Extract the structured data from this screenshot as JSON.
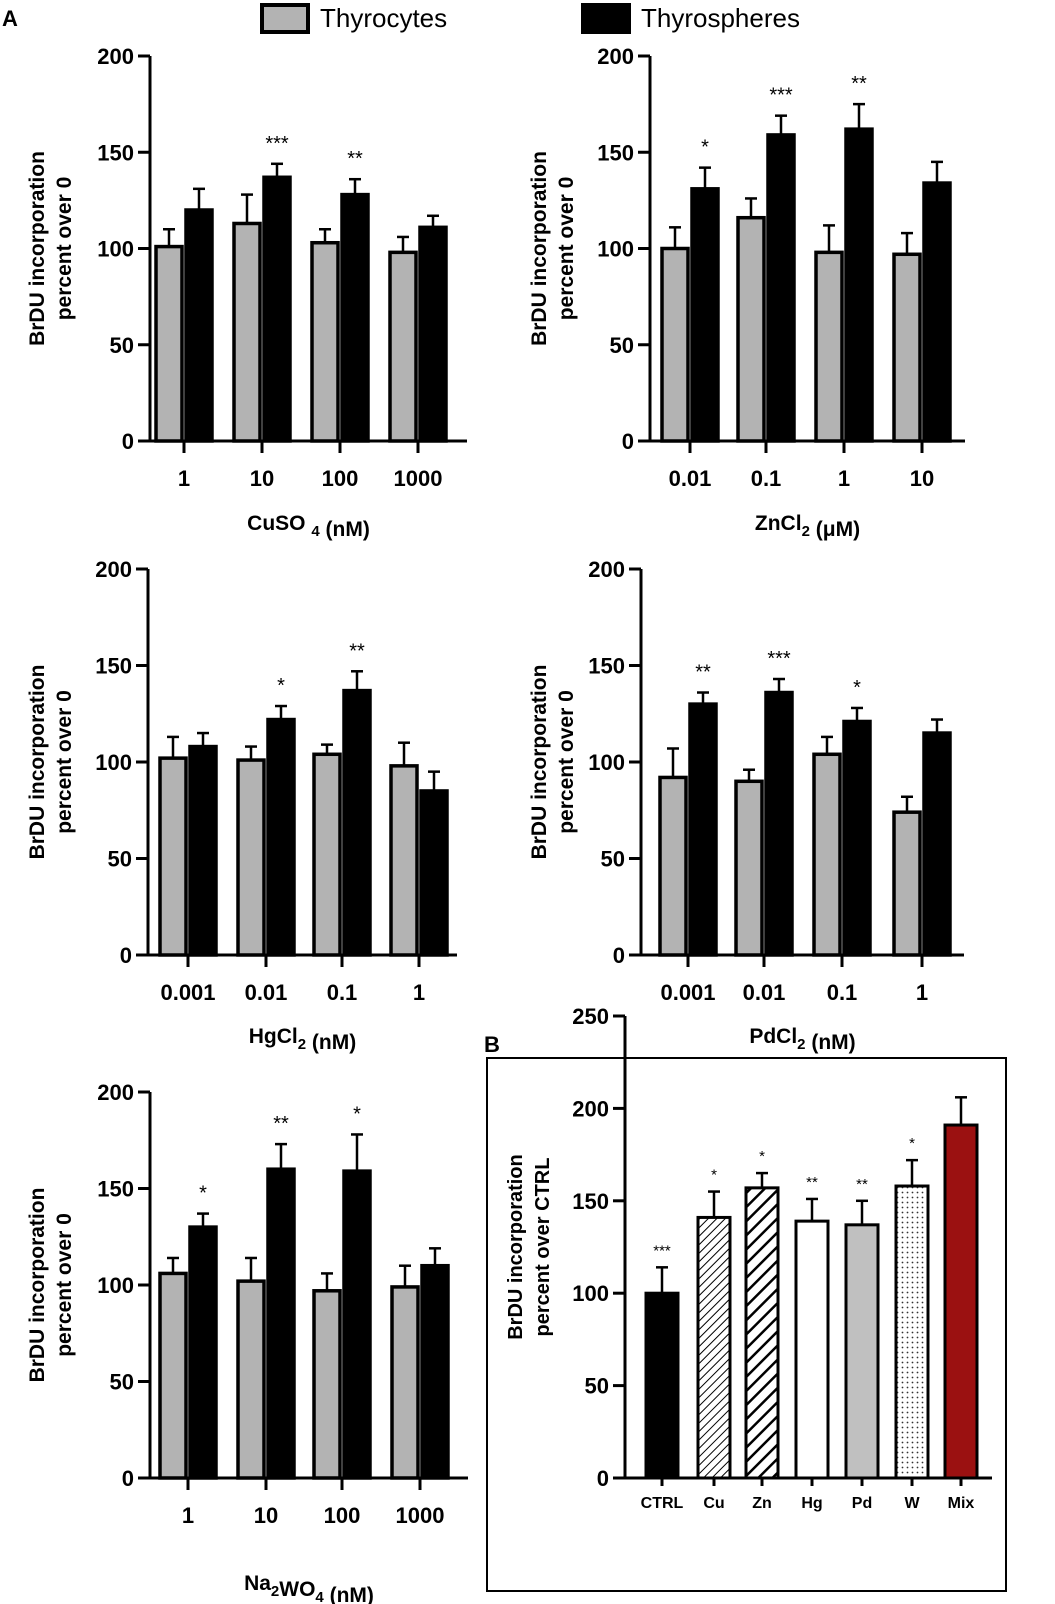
{
  "panel_labels": {
    "a": "A",
    "b": "B"
  },
  "legend": {
    "thyrocytes": "Thyrocytes",
    "thyrospheres": "Thyrospheres"
  },
  "colors": {
    "thyrocytes": "#b3b3b3",
    "thyrospheres": "#000000",
    "mix": "#9b1111",
    "pd": "#c0c0c0",
    "hg": "#ffffff",
    "ctrl": "#000000"
  },
  "chart_data": [
    {
      "id": "cu",
      "type": "bar",
      "title": "",
      "xlabel": "CuSO 4 (nM)",
      "xlabel_parts": [
        {
          "t": "CuSO ",
          "sub": false
        },
        {
          "t": "4",
          "sub": true
        },
        {
          "t": " (nM)",
          "sub": false
        }
      ],
      "ylabel": [
        "BrDU incorporation",
        "percent over 0"
      ],
      "ylim": [
        0,
        200
      ],
      "yticks": [
        0,
        50,
        100,
        150,
        200
      ],
      "categories": [
        "1",
        "10",
        "100",
        "1000"
      ],
      "series": [
        {
          "name": "Thyrocytes",
          "values": [
            101,
            113,
            103,
            98
          ],
          "errors": [
            9,
            15,
            7,
            8
          ]
        },
        {
          "name": "Thyrospheres",
          "values": [
            120,
            137,
            128,
            111
          ],
          "errors": [
            11,
            7,
            8,
            6
          ]
        }
      ],
      "annotations": [
        "",
        "***",
        "**",
        ""
      ]
    },
    {
      "id": "zn",
      "type": "bar",
      "title": "",
      "xlabel": "ZnCl2 (μM)",
      "xlabel_parts": [
        {
          "t": "ZnCl",
          "sub": false
        },
        {
          "t": "2",
          "sub": true
        },
        {
          "t": " (μM)",
          "sub": false
        }
      ],
      "ylabel": [
        "BrDU incorporation",
        "percent over 0"
      ],
      "ylim": [
        0,
        200
      ],
      "yticks": [
        0,
        50,
        100,
        150,
        200
      ],
      "categories": [
        "0.01",
        "0.1",
        "1",
        "10"
      ],
      "series": [
        {
          "name": "Thyrocytes",
          "values": [
            100,
            116,
            98,
            97
          ],
          "errors": [
            11,
            10,
            14,
            11
          ]
        },
        {
          "name": "Thyrospheres",
          "values": [
            131,
            159,
            162,
            134
          ],
          "errors": [
            11,
            10,
            13,
            11
          ]
        }
      ],
      "annotations": [
        "*",
        "***",
        "**",
        ""
      ]
    },
    {
      "id": "hg",
      "type": "bar",
      "title": "",
      "xlabel": "HgCl2 (nM)",
      "xlabel_parts": [
        {
          "t": "HgCl",
          "sub": false
        },
        {
          "t": "2",
          "sub": true
        },
        {
          "t": " (nM)",
          "sub": false
        }
      ],
      "ylabel": [
        "BrDU incorporation",
        "percent over 0"
      ],
      "ylim": [
        0,
        200
      ],
      "yticks": [
        0,
        50,
        100,
        150,
        200
      ],
      "categories": [
        "0.001",
        "0.01",
        "0.1",
        "1"
      ],
      "series": [
        {
          "name": "Thyrocytes",
          "values": [
            102,
            101,
            104,
            98
          ],
          "errors": [
            11,
            7,
            5,
            12
          ]
        },
        {
          "name": "Thyrospheres",
          "values": [
            108,
            122,
            137,
            85
          ],
          "errors": [
            7,
            7,
            10,
            10
          ]
        }
      ],
      "annotations": [
        "",
        "*",
        "**",
        ""
      ]
    },
    {
      "id": "pd",
      "type": "bar",
      "title": "",
      "xlabel": "PdCl2 (nM)",
      "xlabel_parts": [
        {
          "t": "PdCl",
          "sub": false
        },
        {
          "t": "2",
          "sub": true
        },
        {
          "t": " (nM)",
          "sub": false
        }
      ],
      "ylabel": [
        "BrDU incorporation",
        "percent over 0"
      ],
      "ylim": [
        0,
        200
      ],
      "yticks": [
        0,
        50,
        100,
        150,
        200
      ],
      "categories": [
        "0.001",
        "0.01",
        "0.1",
        "1"
      ],
      "series": [
        {
          "name": "Thyrocytes",
          "values": [
            92,
            90,
            104,
            74
          ],
          "errors": [
            15,
            6,
            9,
            8
          ]
        },
        {
          "name": "Thyrospheres",
          "values": [
            130,
            136,
            121,
            115
          ],
          "errors": [
            6,
            7,
            7,
            7
          ]
        }
      ],
      "annotations": [
        "**",
        "***",
        "*",
        ""
      ]
    },
    {
      "id": "w",
      "type": "bar",
      "title": "",
      "xlabel": "Na2WO4 (nM)",
      "xlabel_parts": [
        {
          "t": "Na",
          "sub": false
        },
        {
          "t": "2",
          "sub": true
        },
        {
          "t": "WO",
          "sub": false
        },
        {
          "t": "4",
          "sub": true
        },
        {
          "t": " (nM)",
          "sub": false
        }
      ],
      "ylabel": [
        "BrDU incorporation",
        "percent over 0"
      ],
      "ylim": [
        0,
        200
      ],
      "yticks": [
        0,
        50,
        100,
        150,
        200
      ],
      "categories": [
        "1",
        "10",
        "100",
        "1000"
      ],
      "series": [
        {
          "name": "Thyrocytes",
          "values": [
            106,
            102,
            97,
            99
          ],
          "errors": [
            8,
            12,
            9,
            11
          ]
        },
        {
          "name": "Thyrospheres",
          "values": [
            130,
            160,
            159,
            110
          ],
          "errors": [
            7,
            13,
            19,
            9
          ]
        }
      ],
      "annotations": [
        "*",
        "**",
        "*",
        ""
      ]
    },
    {
      "id": "mix",
      "type": "bar",
      "title": "",
      "xlabel": "",
      "ylabel": [
        "BrDU incorporation",
        "percent over CTRL"
      ],
      "ylim": [
        0,
        250
      ],
      "yticks": [
        0,
        50,
        100,
        150,
        200,
        250
      ],
      "categories": [
        "CTRL",
        "Cu",
        "Zn",
        "Hg",
        "Pd",
        "W",
        "Mix"
      ],
      "values": [
        100,
        141,
        157,
        139,
        137,
        158,
        191
      ],
      "errors": [
        14,
        14,
        8,
        12,
        13,
        14,
        15
      ],
      "fills": [
        "solid-black",
        "hatch-fine",
        "hatch-bold",
        "white",
        "gray",
        "dots",
        "red"
      ],
      "annotations": [
        "***",
        "*",
        "*",
        "**",
        "**",
        "*",
        ""
      ]
    }
  ]
}
